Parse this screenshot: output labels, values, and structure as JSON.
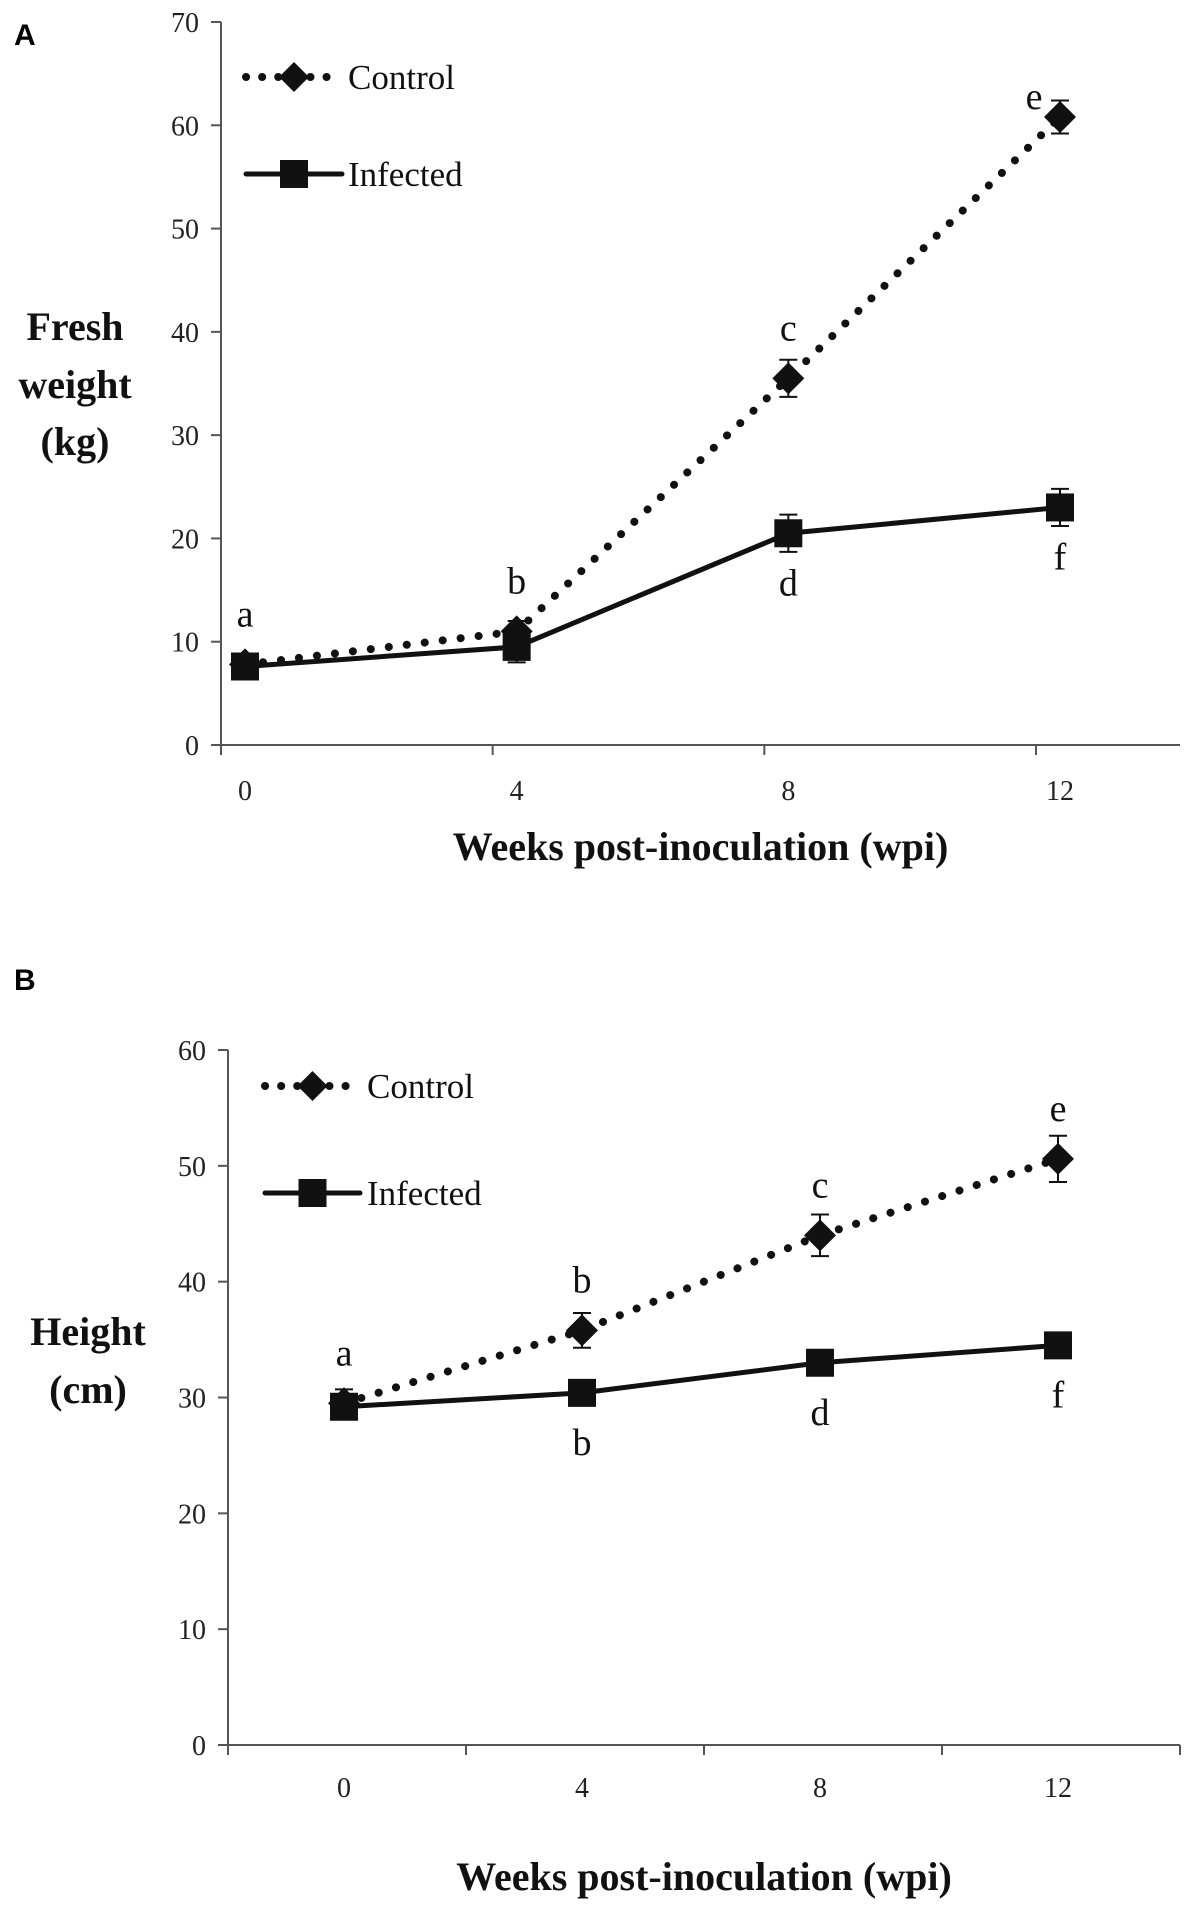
{
  "chart_data": [
    {
      "panel": "A",
      "type": "line",
      "title": "",
      "xlabel": "Weeks post-inoculation (wpi)",
      "ylabel": [
        "Fresh",
        "weight",
        "(kg)"
      ],
      "x": [
        0,
        4,
        8,
        12
      ],
      "xticks": [
        "0",
        "4",
        "8",
        "12"
      ],
      "ylim": [
        0,
        70
      ],
      "yticks": [
        0,
        10,
        20,
        30,
        40,
        50,
        60,
        70
      ],
      "grid": false,
      "legend_position": "top-left",
      "series": [
        {
          "name": "Control",
          "marker": "diamond",
          "style": "dotted",
          "values": [
            7.8,
            11,
            35.5,
            60.8
          ],
          "errors": [
            1.0,
            1.0,
            1.8,
            1.6
          ]
        },
        {
          "name": "Infected",
          "marker": "square",
          "style": "solid",
          "values": [
            7.6,
            9.5,
            20.5,
            23
          ],
          "errors": [
            1.0,
            1.5,
            1.8,
            1.8
          ]
        }
      ],
      "annotations": [
        {
          "text": "a",
          "x": 0,
          "y": 7.8,
          "position": "above"
        },
        {
          "text": "b",
          "x": 4,
          "y": 11,
          "position": "above"
        },
        {
          "text": "c",
          "x": 8,
          "y": 35.5,
          "position": "above"
        },
        {
          "text": "e",
          "x": 12,
          "y": 60.8,
          "position": "above-left"
        },
        {
          "text": "d",
          "x": 8,
          "y": 20.5,
          "position": "below"
        },
        {
          "text": "f",
          "x": 12,
          "y": 23,
          "position": "below"
        }
      ]
    },
    {
      "panel": "B",
      "type": "line",
      "title": "",
      "xlabel": "Weeks post-inoculation (wpi)",
      "ylabel": [
        "Height",
        "(cm)"
      ],
      "x": [
        0,
        4,
        8,
        12
      ],
      "xticks": [
        "0",
        "4",
        "8",
        "12"
      ],
      "ylim": [
        0,
        60
      ],
      "yticks": [
        0,
        10,
        20,
        30,
        40,
        50,
        60
      ],
      "grid": false,
      "legend_position": "top-left",
      "series": [
        {
          "name": "Control",
          "marker": "diamond",
          "style": "dotted",
          "values": [
            29.5,
            35.8,
            44,
            50.6
          ],
          "errors": [
            1.2,
            1.5,
            1.8,
            2.0
          ]
        },
        {
          "name": "Infected",
          "marker": "square",
          "style": "solid",
          "values": [
            29.2,
            30.4,
            33,
            34.5
          ],
          "errors": [
            1.0,
            1.0,
            1.0,
            1.0
          ]
        }
      ],
      "annotations": [
        {
          "text": "a",
          "x": 0,
          "y": 29.5,
          "position": "above"
        },
        {
          "text": "b",
          "x": 4,
          "y": 35.8,
          "position": "above"
        },
        {
          "text": "c",
          "x": 8,
          "y": 44,
          "position": "above"
        },
        {
          "text": "e",
          "x": 12,
          "y": 50.6,
          "position": "above"
        },
        {
          "text": "b",
          "x": 4,
          "y": 30.4,
          "position": "below"
        },
        {
          "text": "d",
          "x": 8,
          "y": 33,
          "position": "below"
        },
        {
          "text": "f",
          "x": 12,
          "y": 34.5,
          "position": "below"
        }
      ]
    }
  ]
}
